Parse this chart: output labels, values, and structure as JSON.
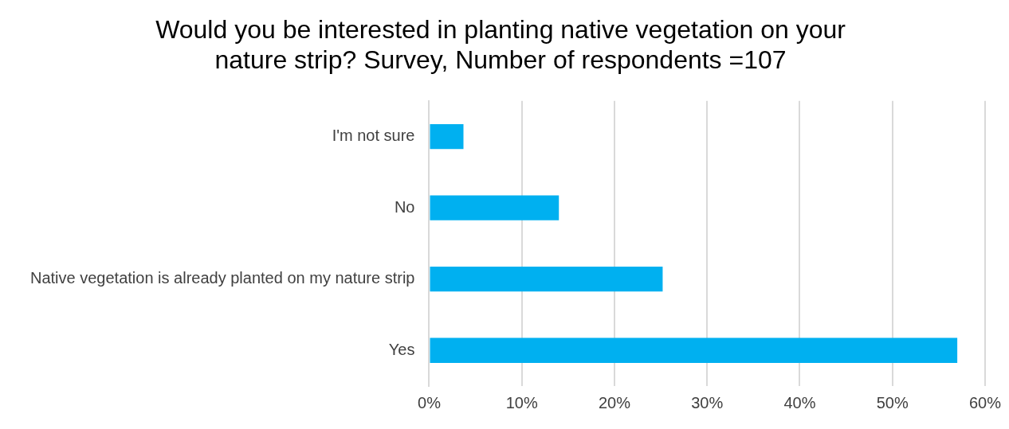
{
  "chart_data": {
    "type": "bar",
    "orientation": "horizontal",
    "title": "Would you be interested in planting native vegetation on your nature strip? Survey, Number of respondents =107",
    "categories": [
      "I'm not sure",
      "No",
      "Native vegetation is already planted on my nature strip",
      "Yes"
    ],
    "values": [
      3.7,
      14.0,
      25.2,
      57.0
    ],
    "color": "#00b0f0",
    "xlim": [
      0,
      60
    ],
    "xticks": [
      {
        "value": 0,
        "label": "0%"
      },
      {
        "value": 10,
        "label": "10%"
      },
      {
        "value": 20,
        "label": "20%"
      },
      {
        "value": 30,
        "label": "30%"
      },
      {
        "value": 40,
        "label": "40%"
      },
      {
        "value": 50,
        "label": "50%"
      },
      {
        "value": 60,
        "label": "60%"
      }
    ],
    "grid": "x"
  }
}
